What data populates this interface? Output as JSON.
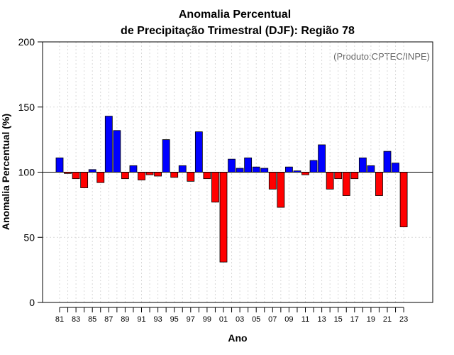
{
  "chart_data": {
    "type": "bar",
    "title_line1": "Anomalia Percentual",
    "title_line2": "de Precipitação Trimestral (DJF): Região 78",
    "xlabel": "Ano",
    "ylabel": "Anomalia Percentual (%)",
    "credit": "(Produto:CPTEC/INPE)",
    "ylim": [
      0,
      200
    ],
    "yticks": [
      0,
      50,
      100,
      150,
      200
    ],
    "baseline": 100,
    "grid": true,
    "colors": {
      "above": "#0000ff",
      "below": "#ff0000"
    },
    "x": [
      1981,
      1982,
      1983,
      1984,
      1985,
      1986,
      1987,
      1988,
      1989,
      1990,
      1991,
      1992,
      1993,
      1994,
      1995,
      1996,
      1997,
      1998,
      1999,
      2000,
      2001,
      2002,
      2003,
      2004,
      2005,
      2006,
      2007,
      2008,
      2009,
      2010,
      2011,
      2012,
      2013,
      2014,
      2015,
      2016,
      2017,
      2018,
      2019,
      2020,
      2021,
      2022,
      2023
    ],
    "xtick_labels": [
      "81",
      "83",
      "85",
      "87",
      "89",
      "91",
      "93",
      "95",
      "97",
      "99",
      "01",
      "03",
      "05",
      "07",
      "09",
      "11",
      "13",
      "15",
      "17",
      "19",
      "21",
      "23"
    ],
    "values": [
      111,
      99,
      95,
      88,
      102,
      92,
      143,
      132,
      95,
      105,
      94,
      98,
      97,
      125,
      96,
      105,
      93,
      131,
      95,
      77,
      31,
      110,
      103,
      111,
      104,
      103,
      87,
      73,
      104,
      101,
      98,
      109,
      121,
      87,
      95,
      82,
      95,
      111,
      105,
      82,
      116,
      107,
      58
    ]
  }
}
